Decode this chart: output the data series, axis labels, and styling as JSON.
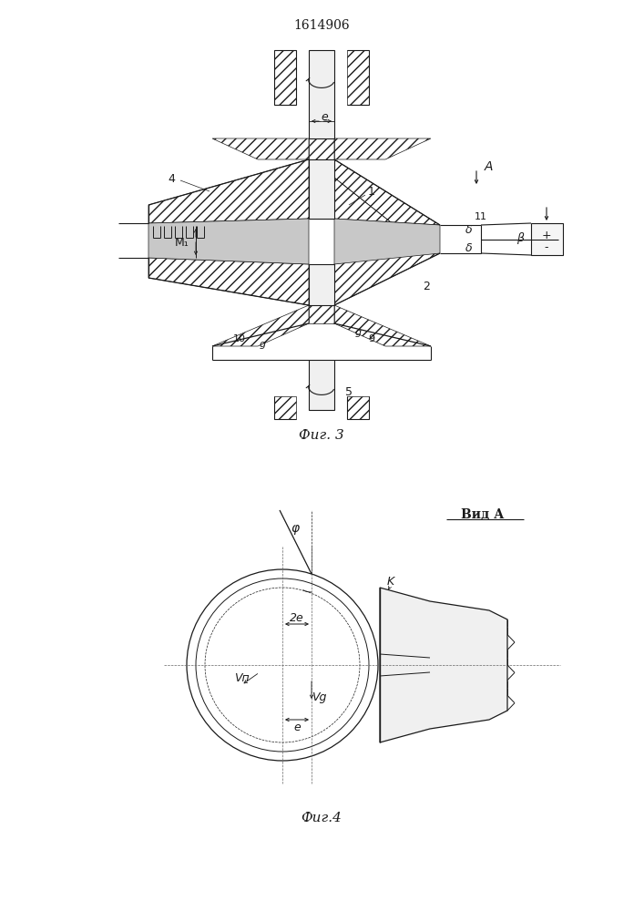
{
  "title": "1614906",
  "fig3_caption": "Фиг. 3",
  "fig4_caption": "Фиг.4",
  "vid_a_label": "Вид А",
  "line_color": "#1a1a1a",
  "label_fontsize": 9
}
